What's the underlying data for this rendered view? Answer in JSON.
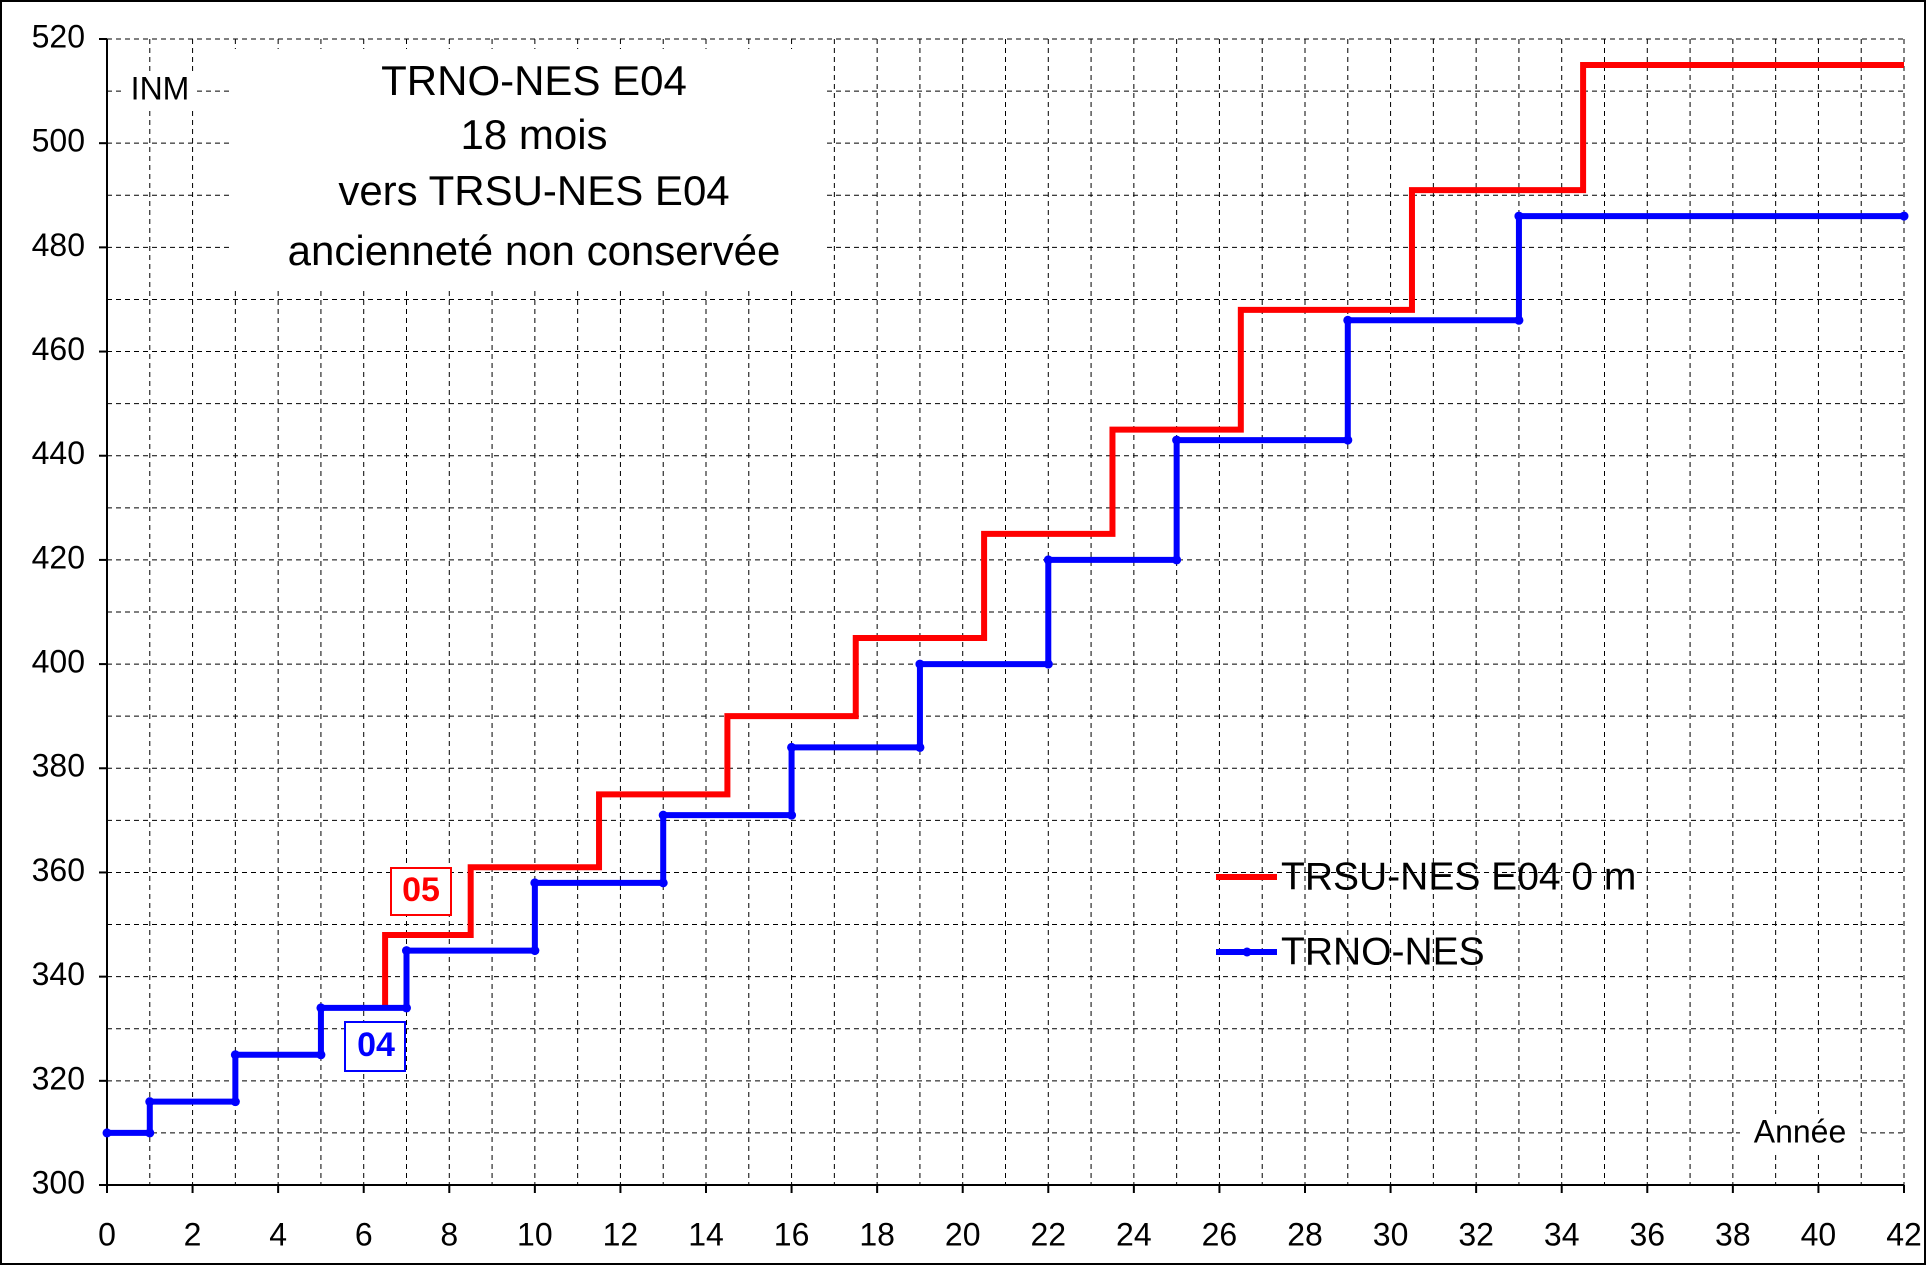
{
  "chart_data": {
    "type": "line",
    "annotations": {
      "corner": "INM",
      "title_lines": [
        "TRNO-NES E04",
        "18 mois",
        "vers TRSU-NES E04",
        "ancienneté non conservée"
      ],
      "x_axis": "Année",
      "red_box": "05",
      "blue_box": "04"
    },
    "series": [
      {
        "name": "TRSU-NES E04 0 m",
        "color": "#ff0000",
        "markers": false,
        "x": [
          6.5,
          6.5,
          8.5,
          8.5,
          11.5,
          11.5,
          14.5,
          14.5,
          17.5,
          17.5,
          20.5,
          20.5,
          23.5,
          23.5,
          26.5,
          26.5,
          30.5,
          30.5,
          34.5,
          34.5,
          42
        ],
        "values": [
          334,
          348,
          348,
          361,
          361,
          375,
          375,
          390,
          390,
          405,
          405,
          425,
          425,
          445,
          445,
          468,
          468,
          491,
          491,
          515,
          515
        ]
      },
      {
        "name": "TRNO-NES",
        "color": "#0000ff",
        "markers": true,
        "x": [
          0,
          1,
          1,
          3,
          3,
          5,
          5,
          7,
          7,
          10,
          10,
          13,
          13,
          16,
          16,
          19,
          19,
          22,
          22,
          25,
          25,
          29,
          29,
          33,
          33,
          42
        ],
        "values": [
          310,
          310,
          316,
          316,
          325,
          325,
          334,
          334,
          345,
          345,
          358,
          358,
          371,
          371,
          384,
          384,
          400,
          400,
          420,
          420,
          443,
          443,
          466,
          466,
          486,
          486
        ]
      }
    ],
    "xlim": [
      0,
      42
    ],
    "ylim": [
      300,
      520
    ],
    "xticks": [
      0,
      2,
      4,
      6,
      8,
      10,
      12,
      14,
      16,
      18,
      20,
      22,
      24,
      26,
      28,
      30,
      32,
      34,
      36,
      38,
      40,
      42
    ],
    "yticks": [
      300,
      320,
      340,
      360,
      380,
      400,
      420,
      440,
      460,
      480,
      500,
      520
    ],
    "minor_xticks": [
      1,
      3,
      5,
      7,
      9,
      11,
      13,
      15,
      17,
      19,
      21,
      23,
      25,
      27,
      29,
      31,
      33,
      35,
      37,
      39,
      41
    ],
    "minor_yticks": [
      310,
      330,
      350,
      370,
      390,
      410,
      430,
      450,
      470,
      490,
      510
    ],
    "grid": true
  }
}
